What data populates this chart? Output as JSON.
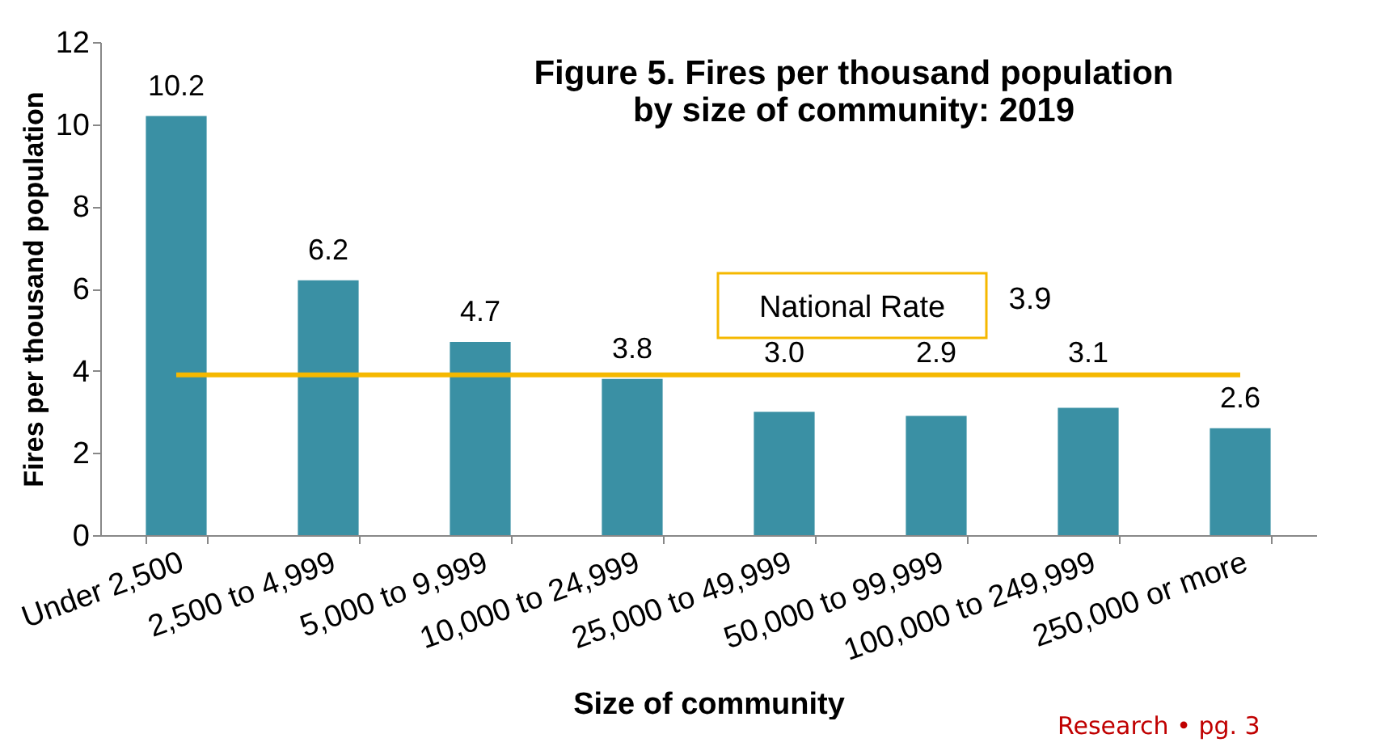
{
  "chart_data": {
    "type": "bar",
    "title": "Figure 5. Fires per thousand population\nby size of community: 2019",
    "xlabel": "Size of community",
    "ylabel": "Fires per thousand population",
    "categories": [
      "Under 2,500",
      "2,500 to 4,999",
      "5,000 to 9,999",
      "10,000 to 24,999",
      "25,000 to 49,999",
      "50,000 to 99,999",
      "100,000 to 249,999",
      "250,000 or more"
    ],
    "values": [
      10.2,
      6.2,
      4.7,
      3.8,
      3.0,
      2.9,
      3.1,
      2.6
    ],
    "color": "#3a90a4",
    "value_labels": [
      "10.2",
      "6.2",
      "4.7",
      "3.8",
      "3.0",
      "2.9",
      "3.1",
      "2.6"
    ],
    "ylim": [
      0,
      12
    ],
    "yticks": [
      0,
      2,
      4,
      6,
      8,
      10,
      12
    ],
    "grid": false,
    "ref_lines": [
      {
        "axis": "y",
        "value": 3.9,
        "label": "National Rate",
        "color": "#f5b800"
      }
    ],
    "annotations": [
      {
        "text": "3.9",
        "y": 3.9
      },
      "Research • pg. 3"
    ]
  }
}
